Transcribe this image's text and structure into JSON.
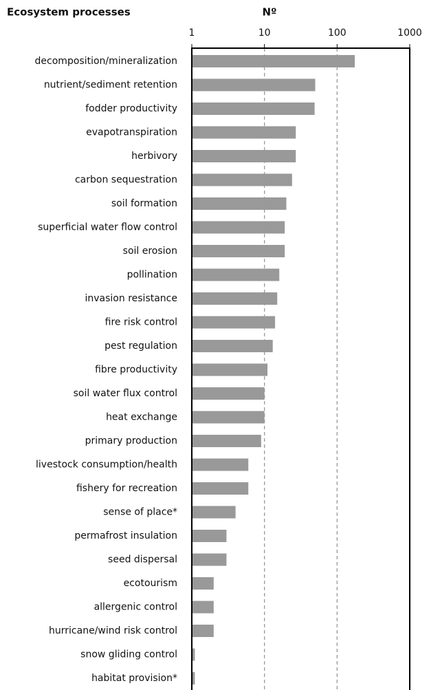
{
  "chart_data": {
    "type": "bar",
    "orientation": "horizontal",
    "title": "Ecosystem processes",
    "x_label": "Nº",
    "categories": [
      "decomposition/mineralization",
      "nutrient/sediment retention",
      "fodder productivity",
      "evapotranspiration",
      "herbivory",
      "carbon sequestration",
      "soil formation",
      "superficial water flow control",
      "soil erosion",
      "pollination",
      "invasion resistance",
      "fire risk control",
      "pest regulation",
      "fibre productivity",
      "soil water flux control",
      "heat exchange",
      "primary production",
      "livestock consumption/health",
      "fishery for recreation",
      "sense of place*",
      "permafrost insulation",
      "seed dispersal",
      "ecotourism",
      "allergenic control",
      "hurricane/wind risk control",
      "snow gliding control",
      "habitat provision*"
    ],
    "values": [
      175,
      50,
      49,
      27,
      27,
      24,
      20,
      19,
      19,
      16,
      15,
      14,
      13,
      11,
      10,
      10,
      9,
      6,
      6,
      4,
      3,
      3,
      2,
      2,
      2,
      1.1,
      1.1
    ],
    "color": "#999999",
    "xlim": [
      1,
      1000
    ],
    "xticks": [
      1,
      10,
      100,
      1000
    ],
    "log_x": true,
    "grid": true
  }
}
